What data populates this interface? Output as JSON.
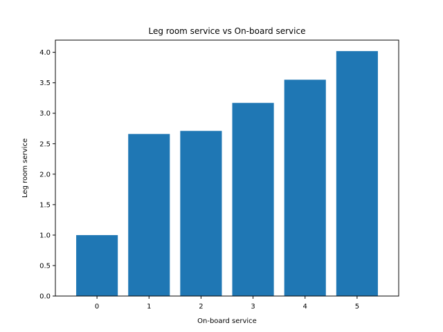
{
  "chart_data": {
    "type": "bar",
    "title": "Leg room service vs On-board service",
    "xlabel": "On-board service",
    "ylabel": "Leg room service",
    "categories": [
      "0",
      "1",
      "2",
      "3",
      "4",
      "5"
    ],
    "values": [
      1.0,
      2.66,
      2.71,
      3.17,
      3.55,
      4.02
    ],
    "ylim": [
      0,
      4.2
    ],
    "yticks": [
      "0.0",
      "0.5",
      "1.0",
      "1.5",
      "2.0",
      "2.5",
      "3.0",
      "3.5",
      "4.0"
    ],
    "grid": false,
    "bar_color": "#1f77b4"
  }
}
